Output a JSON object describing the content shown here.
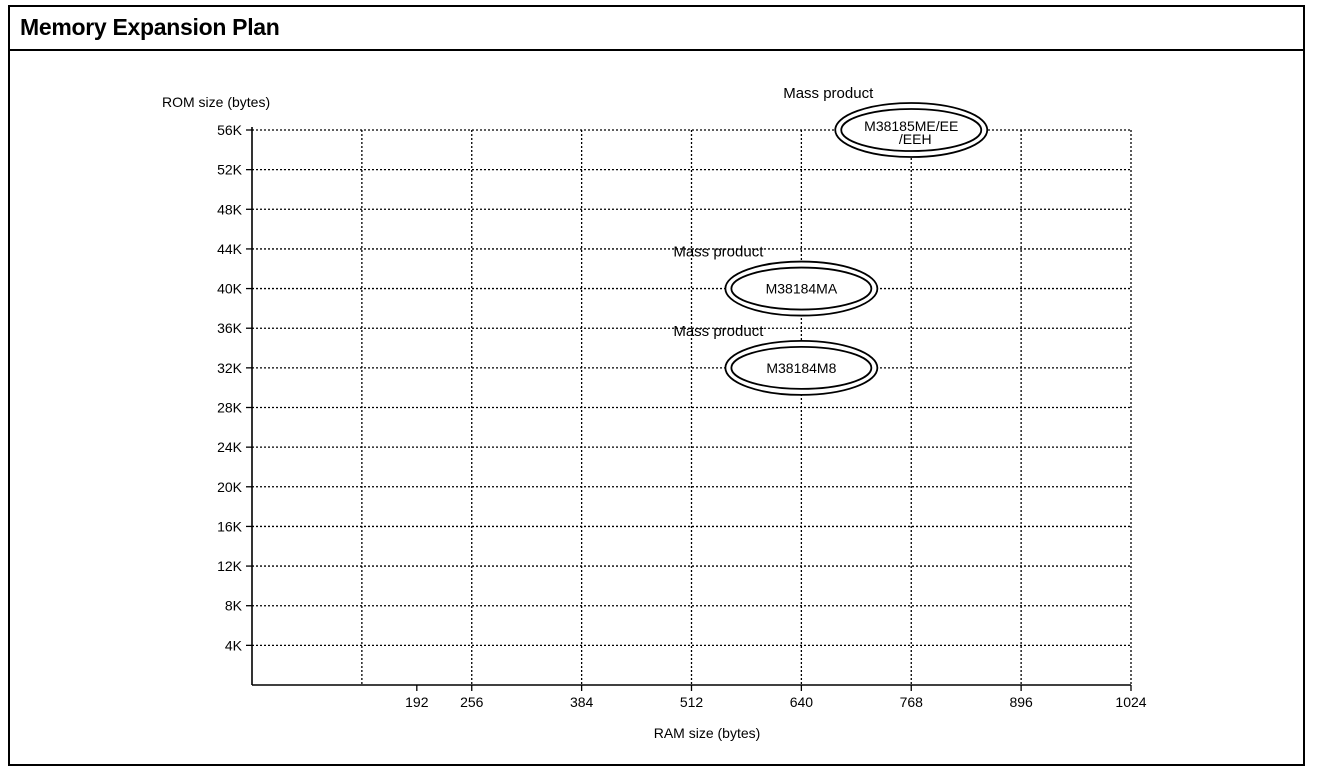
{
  "page": {
    "title": "Memory Expansion Plan"
  },
  "chart_data": {
    "type": "scatter",
    "title": "Memory Expansion Plan",
    "xlabel": "RAM size (bytes)",
    "ylabel": "ROM size (bytes)",
    "x_ticks": [
      "192",
      "256",
      "384",
      "512",
      "640",
      "768",
      "896",
      "1024"
    ],
    "x_tick_values": [
      192,
      256,
      384,
      512,
      640,
      768,
      896,
      1024
    ],
    "x_grid_values": [
      128,
      256,
      384,
      512,
      640,
      768,
      896,
      1024
    ],
    "y_ticks": [
      "4K",
      "8K",
      "12K",
      "16K",
      "20K",
      "24K",
      "28K",
      "32K",
      "36K",
      "40K",
      "44K",
      "48K",
      "52K",
      "56K"
    ],
    "y_tick_values": [
      4,
      8,
      12,
      16,
      20,
      24,
      28,
      32,
      36,
      40,
      44,
      48,
      52,
      56
    ],
    "xlim": [
      0,
      1024
    ],
    "ylim": [
      0,
      56
    ],
    "grid": true,
    "grid_style": "dotted",
    "points": [
      {
        "x": 768,
        "y": 56,
        "label": "M38185ME/EE",
        "label2": "/EEH",
        "annotation": "Mass product"
      },
      {
        "x": 640,
        "y": 40,
        "label": "M38184MA",
        "label2": "",
        "annotation": "Mass product"
      },
      {
        "x": 640,
        "y": 32,
        "label": "M38184M8",
        "label2": "",
        "annotation": "Mass product"
      }
    ]
  }
}
